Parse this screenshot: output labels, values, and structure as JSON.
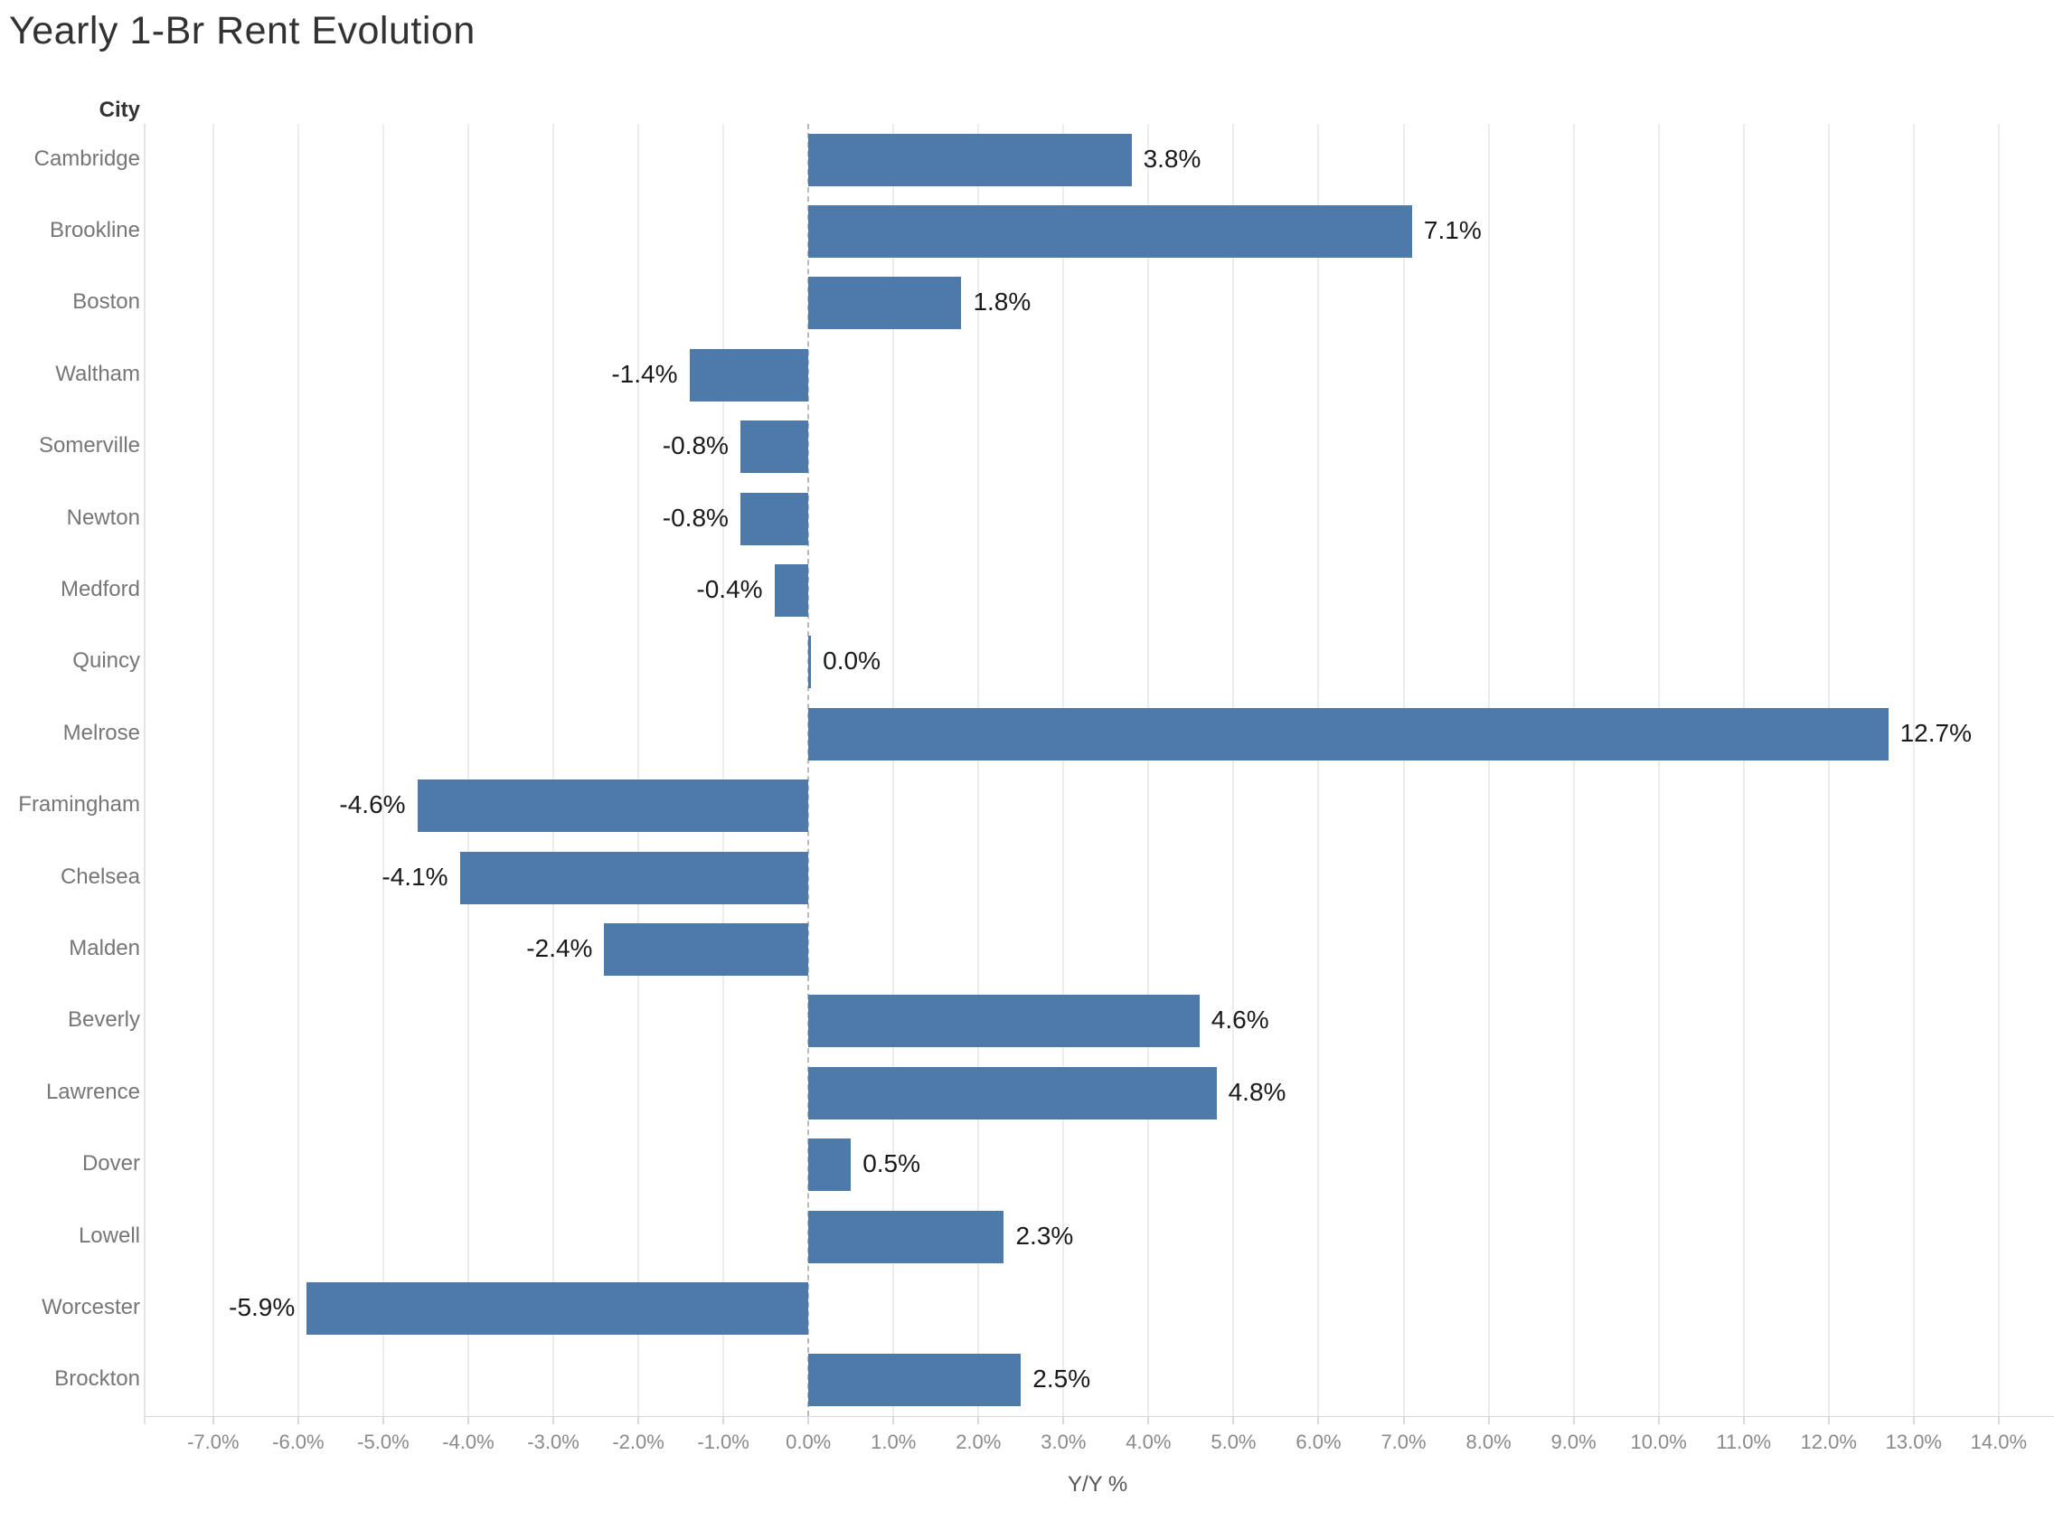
{
  "title": "Yearly 1-Br Rent Evolution",
  "row_axis_header": "City",
  "x_axis_title": "Y/Y %",
  "colors": {
    "bar": "#4e7aa9",
    "title_text": "#323232",
    "city_label_text": "#767676",
    "tick_label_text": "#8a8a8a"
  },
  "chart_data": {
    "type": "bar",
    "orientation": "horizontal",
    "title": "Yearly 1-Br Rent Evolution",
    "xlabel": "Y/Y %",
    "ylabel": "City",
    "grid": true,
    "zero_line_style": "dashed",
    "bar_color": "#4e7aa9",
    "xlim": [
      -7.7,
      14.65
    ],
    "xticks": [
      -7,
      -6,
      -5,
      -4,
      -3,
      -2,
      -1,
      0,
      1,
      2,
      3,
      4,
      5,
      6,
      7,
      8,
      9,
      10,
      11,
      12,
      13,
      14
    ],
    "xtick_labels": [
      "-7.0%",
      "-6.0%",
      "-5.0%",
      "-4.0%",
      "-3.0%",
      "-2.0%",
      "-1.0%",
      "0.0%",
      "1.0%",
      "2.0%",
      "3.0%",
      "4.0%",
      "5.0%",
      "6.0%",
      "7.0%",
      "8.0%",
      "9.0%",
      "10.0%",
      "11.0%",
      "12.0%",
      "13.0%",
      "14.0%"
    ],
    "categories": [
      "Cambridge",
      "Brookline",
      "Boston",
      "Waltham",
      "Somerville",
      "Newton",
      "Medford",
      "Quincy",
      "Melrose",
      "Framingham",
      "Chelsea",
      "Malden",
      "Beverly",
      "Lawrence",
      "Dover",
      "Lowell",
      "Worcester",
      "Brockton"
    ],
    "values": [
      3.8,
      7.1,
      1.8,
      -1.4,
      -0.8,
      -0.8,
      -0.4,
      0.0,
      12.7,
      -4.6,
      -4.1,
      -2.4,
      4.6,
      4.8,
      0.5,
      2.3,
      -5.9,
      2.5
    ],
    "value_labels": [
      "3.8%",
      "7.1%",
      "1.8%",
      "-1.4%",
      "-0.8%",
      "-0.8%",
      "-0.4%",
      "0.0%",
      "12.7%",
      "-4.6%",
      "-4.1%",
      "-2.4%",
      "4.6%",
      "4.8%",
      "0.5%",
      "2.3%",
      "-5.9%",
      "2.5%"
    ]
  }
}
